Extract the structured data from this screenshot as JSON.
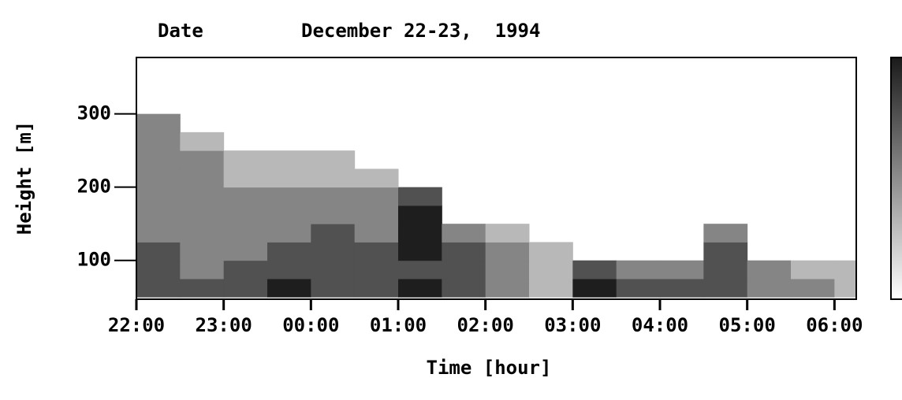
{
  "chart_data": {
    "type": "heatmap",
    "date_label": "Date",
    "title": "December 22-23,  1994",
    "xlabel": "Time [hour]",
    "ylabel": "Height [m]",
    "xlim": [
      22,
      30.25
    ],
    "xticks": [
      {
        "value": 22,
        "label": "22:00"
      },
      {
        "value": 23,
        "label": "23:00"
      },
      {
        "value": 24,
        "label": "00:00"
      },
      {
        "value": 25,
        "label": "01:00"
      },
      {
        "value": 26,
        "label": "02:00"
      },
      {
        "value": 27,
        "label": "03:00"
      },
      {
        "value": 28,
        "label": "04:00"
      },
      {
        "value": 29,
        "label": "05:00"
      },
      {
        "value": 30,
        "label": "06:00"
      }
    ],
    "ylim": [
      47,
      377
    ],
    "yticks": [
      100,
      200,
      300
    ],
    "zlim": [
      0,
      4
    ],
    "xbins": [
      22,
      22.5,
      23,
      23.5,
      24,
      24.5,
      25,
      25.5,
      26,
      26.5,
      27,
      27.5,
      28,
      28.5,
      29,
      29.5,
      30,
      30.25
    ],
    "ybins": [
      50,
      75,
      100,
      125,
      150,
      175,
      200,
      225,
      250,
      275,
      300
    ],
    "z": [
      [
        3,
        3,
        3,
        4,
        3,
        3,
        4,
        3,
        2,
        1,
        4,
        3,
        3,
        3,
        2,
        2,
        1
      ],
      [
        3,
        2,
        3,
        3,
        3,
        3,
        3,
        3,
        2,
        1,
        3,
        2,
        2,
        3,
        2,
        1,
        1
      ],
      [
        3,
        2,
        2,
        3,
        3,
        3,
        4,
        3,
        2,
        1,
        null,
        null,
        null,
        3,
        null,
        null,
        null
      ],
      [
        2,
        2,
        2,
        2,
        3,
        2,
        4,
        2,
        1,
        null,
        null,
        null,
        null,
        2,
        null,
        null,
        null
      ],
      [
        2,
        2,
        2,
        2,
        2,
        2,
        4,
        null,
        null,
        null,
        null,
        null,
        null,
        null,
        null,
        null,
        null
      ],
      [
        2,
        2,
        2,
        2,
        2,
        2,
        3,
        null,
        null,
        null,
        null,
        null,
        null,
        null,
        null,
        null,
        null
      ],
      [
        2,
        2,
        1,
        1,
        1,
        1,
        null,
        null,
        null,
        null,
        null,
        null,
        null,
        null,
        null,
        null,
        null
      ],
      [
        2,
        2,
        1,
        1,
        1,
        null,
        null,
        null,
        null,
        null,
        null,
        null,
        null,
        null,
        null,
        null,
        null
      ],
      [
        2,
        1,
        null,
        null,
        null,
        null,
        null,
        null,
        null,
        null,
        null,
        null,
        null,
        null,
        null,
        null,
        null
      ],
      [
        2,
        null,
        null,
        null,
        null,
        null,
        null,
        null,
        null,
        null,
        null,
        null,
        null,
        null,
        null,
        null,
        null
      ]
    ]
  }
}
